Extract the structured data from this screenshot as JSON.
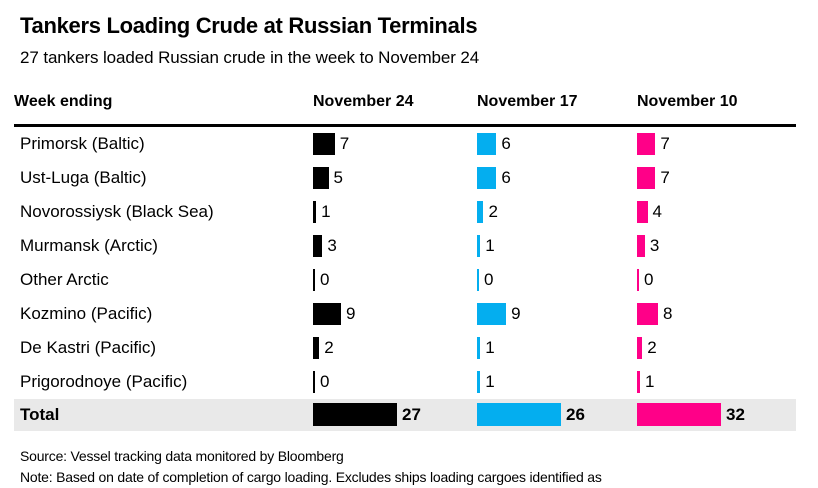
{
  "header": {
    "title": "Tankers Loading Crude at Russian Terminals",
    "subtitle": "27 tankers loaded Russian crude in the week to November 24"
  },
  "table": {
    "row_header": "Week ending",
    "total_label": "Total"
  },
  "chart_data": {
    "type": "bar",
    "orientation": "horizontal",
    "title": "Tankers Loading Crude at Russian Terminals",
    "subtitle": "27 tankers loaded Russian crude in the week to November 24",
    "categories": [
      "Primorsk (Baltic)",
      "Ust-Luga (Baltic)",
      "Novorossiysk (Black Sea)",
      "Murmansk (Arctic)",
      "Other Arctic",
      "Kozmino (Pacific)",
      "De Kastri (Pacific)",
      "Prigorodnoye (Pacific)"
    ],
    "series": [
      {
        "name": "November 24",
        "color": "#000000",
        "values": [
          7,
          5,
          1,
          3,
          0,
          9,
          2,
          0
        ],
        "total": 27
      },
      {
        "name": "November 17",
        "color": "#04aeef",
        "values": [
          6,
          6,
          2,
          1,
          0,
          9,
          1,
          1
        ],
        "total": 26
      },
      {
        "name": "November 10",
        "color": "#ff0088",
        "values": [
          7,
          7,
          4,
          3,
          0,
          8,
          2,
          1
        ],
        "total": 32
      }
    ],
    "value_labels_shown": true,
    "legend_position": "column-headers"
  },
  "colors": {
    "bar_black": "#000000",
    "accent_blue": "#04aeef",
    "accent_pink": "#ff0088",
    "total_row_bg": "#e9e9e9"
  },
  "footer": {
    "source": "Source: Vessel tracking data monitored by Bloomberg",
    "note": "Note: Based on date of completion of cargo loading. Excludes ships loading cargoes identified as"
  }
}
